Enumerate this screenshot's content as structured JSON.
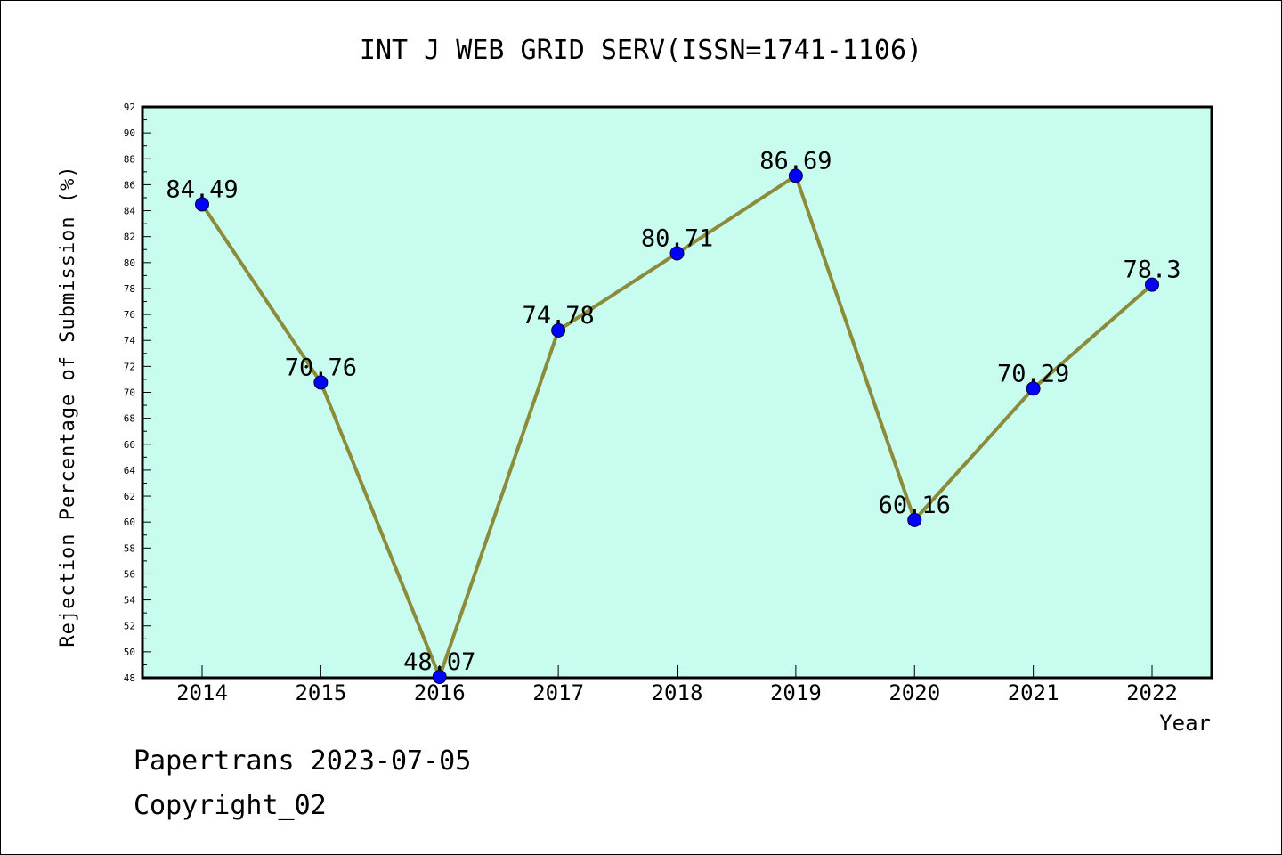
{
  "chart_data": {
    "type": "line",
    "title": "INT J WEB GRID SERV(ISSN=1741-1106)",
    "xlabel": "Year",
    "ylabel": "Rejection Percentage of Submission (%)",
    "ylim": [
      48,
      92
    ],
    "yticks": [
      48,
      50,
      52,
      54,
      56,
      58,
      60,
      62,
      64,
      66,
      68,
      70,
      72,
      74,
      76,
      78,
      80,
      82,
      84,
      86,
      88,
      90,
      92
    ],
    "grid": false,
    "categories": [
      "2014",
      "2015",
      "2016",
      "2017",
      "2018",
      "2019",
      "2020",
      "2021",
      "2022"
    ],
    "values": [
      84.49,
      70.76,
      48.07,
      74.78,
      80.71,
      86.69,
      60.16,
      70.29,
      78.3
    ],
    "labels": [
      "84.49",
      "70.76",
      "48.07",
      "74.78",
      "80.71",
      "86.69",
      "60.16",
      "70.29",
      "78.3"
    ],
    "colors": {
      "plot_background": "#c8fcee",
      "line": "#8b8b3a",
      "marker": "#0000ff"
    }
  },
  "footer": {
    "line1": "Papertrans 2023-07-05",
    "line2": "Copyright_02"
  }
}
